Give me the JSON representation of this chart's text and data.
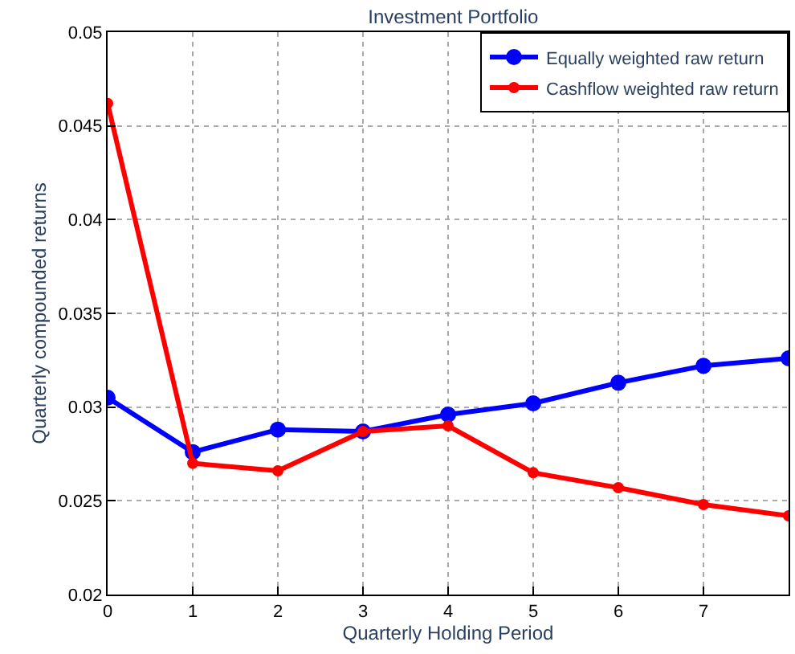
{
  "chart_data": {
    "type": "line",
    "title": "Investment Portfolio",
    "xlabel": "Quarterly Holding Period",
    "ylabel": "Quarterly compounded returns",
    "x": [
      0,
      1,
      2,
      3,
      4,
      5,
      6,
      7,
      8
    ],
    "series": [
      {
        "name": "Equally weighted raw return",
        "color": "#0000ff",
        "values": [
          0.0305,
          0.0276,
          0.0288,
          0.0287,
          0.0296,
          0.0302,
          0.0313,
          0.0322,
          0.0326
        ]
      },
      {
        "name": "Cashflow weighted raw return",
        "color": "#ff0000",
        "values": [
          0.0462,
          0.027,
          0.0266,
          0.0287,
          0.029,
          0.0265,
          0.0257,
          0.0248,
          0.0242
        ]
      }
    ],
    "xlim": [
      0,
      8
    ],
    "xticks": [
      0,
      1,
      2,
      3,
      4,
      5,
      6,
      7
    ],
    "ylim": [
      0.02,
      0.05
    ],
    "yticks": [
      0.02,
      0.025,
      0.03,
      0.035,
      0.04,
      0.045,
      0.05
    ],
    "grid": true,
    "legend": "top right",
    "marker": "circle",
    "line_style": "solid"
  }
}
